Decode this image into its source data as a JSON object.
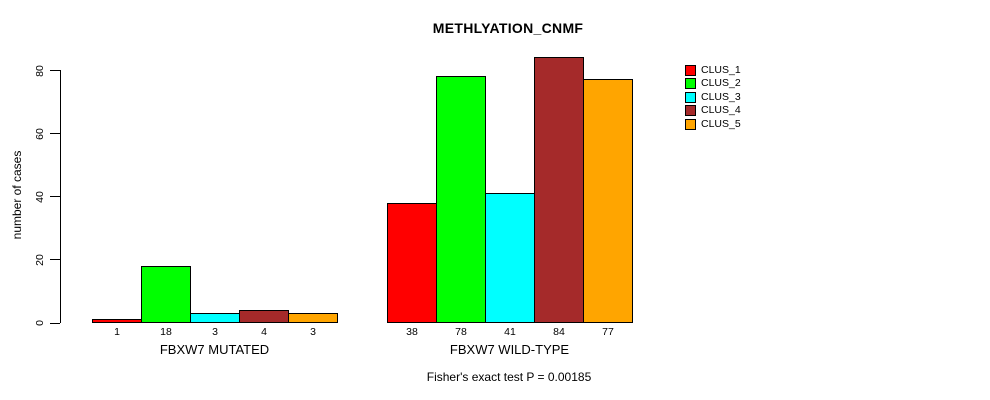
{
  "chart_data": {
    "type": "bar",
    "title": "METHLYATION_CNMF",
    "xlabel": "",
    "ylabel": "number of cases",
    "ylim": [
      0,
      80
    ],
    "yticks": [
      0,
      20,
      40,
      60,
      80
    ],
    "grid": false,
    "legend_position": "right",
    "bar_value_labels": true,
    "categories": [
      "FBXW7 MUTATED",
      "FBXW7 WILD-TYPE"
    ],
    "series": [
      {
        "name": "CLUS_1",
        "color": "#FF0000",
        "values": [
          1,
          38
        ]
      },
      {
        "name": "CLUS_2",
        "color": "#00FF00",
        "values": [
          18,
          78
        ]
      },
      {
        "name": "CLUS_3",
        "color": "#00FFFF",
        "values": [
          3,
          41
        ]
      },
      {
        "name": "CLUS_4",
        "color": "#A52A2A",
        "values": [
          4,
          84
        ]
      },
      {
        "name": "CLUS_5",
        "color": "#FFA500",
        "values": [
          3,
          77
        ]
      }
    ],
    "annotation": "Fisher's exact test P = 0.00185"
  },
  "colors": {
    "background": "#FFFFFF",
    "axis": "#000000",
    "text": "#000000"
  }
}
